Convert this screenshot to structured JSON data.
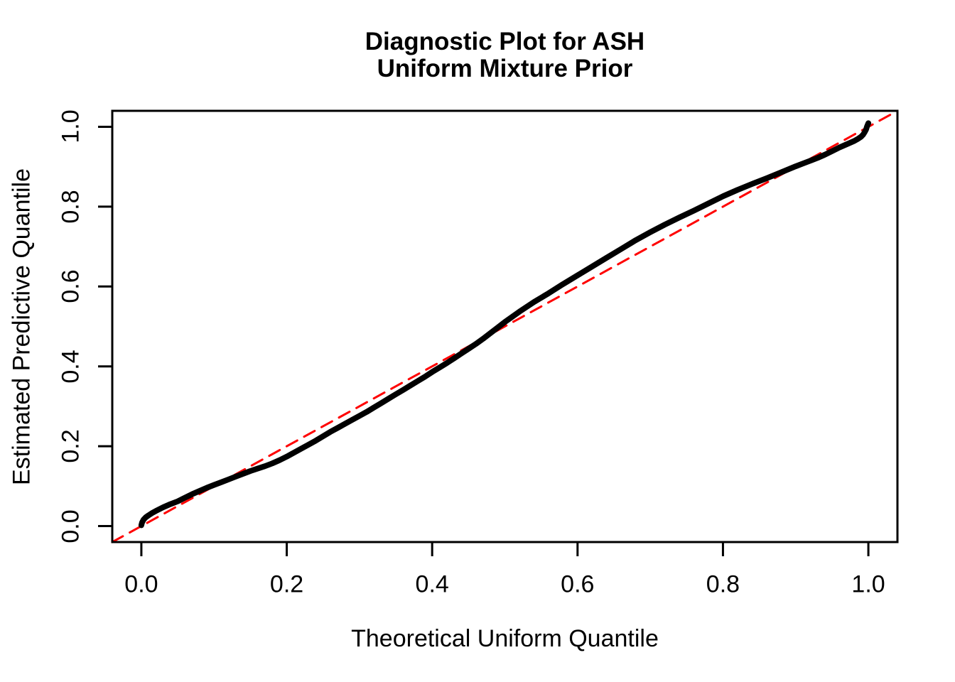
{
  "page": {
    "background": "#ffffff"
  },
  "colors": {
    "curve": "#000000",
    "reference_line": "#ff0000",
    "axis": "#000000",
    "text": "#000000",
    "background": "#ffffff"
  },
  "title": {
    "line1": "Diagnostic Plot for ASH",
    "line2": "Uniform Mixture Prior"
  },
  "chart_data": {
    "type": "line",
    "title": "Diagnostic Plot for ASH\nUniform Mixture Prior",
    "xlabel": "Theoretical Uniform Quantile",
    "ylabel": "Estimated Predictive Quantile",
    "xlim": [
      -0.04,
      1.04
    ],
    "ylim": [
      -0.04,
      1.04
    ],
    "grid": false,
    "legend_position": "none",
    "xticks": {
      "values": [
        0.0,
        0.2,
        0.4,
        0.6,
        0.8,
        1.0
      ],
      "labels": [
        "0.0",
        "0.2",
        "0.4",
        "0.6",
        "0.8",
        "1.0"
      ]
    },
    "yticks": {
      "values": [
        0.0,
        0.2,
        0.4,
        0.6,
        0.8,
        1.0
      ],
      "labels": [
        "0.0",
        "0.2",
        "0.4",
        "0.6",
        "0.8",
        "1.0"
      ]
    },
    "series": [
      {
        "name": "estimated-predictive-quantile-curve",
        "type": "line",
        "style": "solid",
        "color": "#000000",
        "line_width": 8,
        "points": [
          [
            0.0,
            0.002
          ],
          [
            0.001,
            0.009
          ],
          [
            0.003,
            0.016
          ],
          [
            0.006,
            0.022
          ],
          [
            0.01,
            0.027
          ],
          [
            0.015,
            0.033
          ],
          [
            0.02,
            0.038
          ],
          [
            0.03,
            0.047
          ],
          [
            0.04,
            0.055
          ],
          [
            0.05,
            0.062
          ],
          [
            0.06,
            0.071
          ],
          [
            0.07,
            0.08
          ],
          [
            0.08,
            0.088
          ],
          [
            0.09,
            0.096
          ],
          [
            0.1,
            0.103
          ],
          [
            0.11,
            0.11
          ],
          [
            0.12,
            0.117
          ],
          [
            0.13,
            0.124
          ],
          [
            0.14,
            0.131
          ],
          [
            0.15,
            0.138
          ],
          [
            0.16,
            0.144
          ],
          [
            0.17,
            0.15
          ],
          [
            0.18,
            0.157
          ],
          [
            0.19,
            0.165
          ],
          [
            0.2,
            0.174
          ],
          [
            0.21,
            0.184
          ],
          [
            0.22,
            0.194
          ],
          [
            0.23,
            0.204
          ],
          [
            0.24,
            0.214
          ],
          [
            0.25,
            0.225
          ],
          [
            0.26,
            0.236
          ],
          [
            0.27,
            0.246
          ],
          [
            0.28,
            0.256
          ],
          [
            0.29,
            0.266
          ],
          [
            0.3,
            0.276
          ],
          [
            0.31,
            0.286
          ],
          [
            0.32,
            0.297
          ],
          [
            0.33,
            0.308
          ],
          [
            0.34,
            0.319
          ],
          [
            0.35,
            0.33
          ],
          [
            0.36,
            0.341
          ],
          [
            0.37,
            0.352
          ],
          [
            0.38,
            0.363
          ],
          [
            0.39,
            0.374
          ],
          [
            0.4,
            0.386
          ],
          [
            0.41,
            0.397
          ],
          [
            0.42,
            0.408
          ],
          [
            0.43,
            0.42
          ],
          [
            0.44,
            0.432
          ],
          [
            0.45,
            0.444
          ],
          [
            0.46,
            0.456
          ],
          [
            0.47,
            0.469
          ],
          [
            0.48,
            0.483
          ],
          [
            0.49,
            0.497
          ],
          [
            0.5,
            0.511
          ],
          [
            0.52,
            0.537
          ],
          [
            0.54,
            0.561
          ],
          [
            0.56,
            0.583
          ],
          [
            0.58,
            0.606
          ],
          [
            0.6,
            0.628
          ],
          [
            0.62,
            0.65
          ],
          [
            0.64,
            0.672
          ],
          [
            0.66,
            0.694
          ],
          [
            0.68,
            0.716
          ],
          [
            0.7,
            0.736
          ],
          [
            0.72,
            0.755
          ],
          [
            0.74,
            0.773
          ],
          [
            0.76,
            0.79
          ],
          [
            0.78,
            0.808
          ],
          [
            0.8,
            0.826
          ],
          [
            0.82,
            0.842
          ],
          [
            0.84,
            0.857
          ],
          [
            0.86,
            0.871
          ],
          [
            0.88,
            0.886
          ],
          [
            0.9,
            0.901
          ],
          [
            0.91,
            0.908
          ],
          [
            0.92,
            0.915
          ],
          [
            0.93,
            0.922
          ],
          [
            0.94,
            0.93
          ],
          [
            0.95,
            0.939
          ],
          [
            0.96,
            0.948
          ],
          [
            0.97,
            0.956
          ],
          [
            0.98,
            0.964
          ],
          [
            0.985,
            0.969
          ],
          [
            0.99,
            0.975
          ],
          [
            0.993,
            0.981
          ],
          [
            0.995,
            0.987
          ],
          [
            0.997,
            0.994
          ],
          [
            0.998,
            1.0
          ],
          [
            0.999,
            1.005
          ],
          [
            1.0,
            1.009
          ]
        ]
      },
      {
        "name": "reference-line-y-equals-x",
        "type": "line",
        "style": "dashed",
        "color": "#ff0000",
        "line_width": 3,
        "points": [
          [
            -0.04,
            -0.04
          ],
          [
            1.04,
            1.04
          ]
        ]
      }
    ]
  }
}
